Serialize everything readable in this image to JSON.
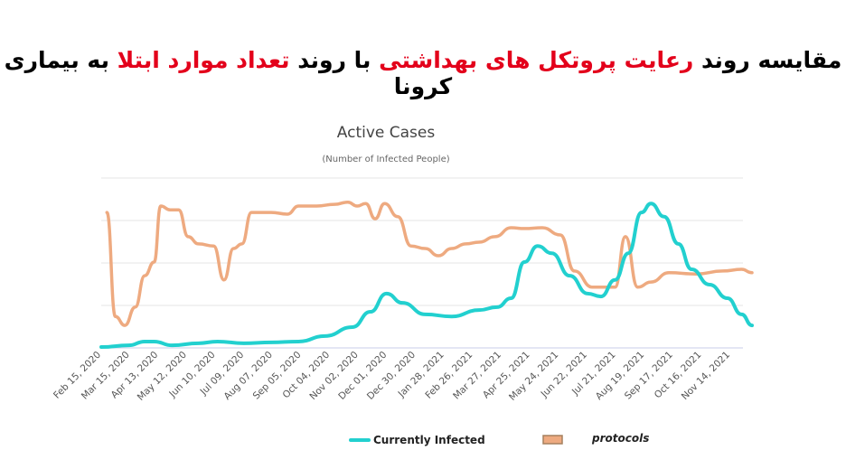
{
  "headline": [
    {
      "text": "مقایسه روند",
      "color": "#000000"
    },
    {
      "text": "رعایت پروتکل های بهداشتی",
      "color": "#e3001b"
    },
    {
      "text": "با روند",
      "color": "#000000"
    },
    {
      "text": "تعداد موارد ابتلا",
      "color": "#e3001b"
    },
    {
      "text": "به بیماری کرونا",
      "color": "#000000"
    }
  ],
  "chart_data": {
    "type": "line",
    "title": "Active Cases",
    "subtitle": "(Number of Infected People)",
    "xlabel": "",
    "ylabel": "",
    "x_tick_labels": [
      "Feb 15, 2020",
      "Mar 15, 2020",
      "Apr 13, 2020",
      "May 12, 2020",
      "Jun 10, 2020",
      "Jul 09, 2020",
      "Aug 07, 2020",
      "Sep 05, 2020",
      "Oct 04, 2020",
      "Nov 02, 2020",
      "Dec 01, 2020",
      "Dec 30, 2020",
      "Jan 28, 2021",
      "Feb 26, 2021",
      "Mar 27, 2021",
      "Apr 25, 2021",
      "May 24, 2021",
      "Jun 22, 2021",
      "Jul 21, 2021",
      "Aug 19, 2021",
      "Sep 17, 2021",
      "Oct 16, 2021",
      "Nov 14, 2021"
    ],
    "x_range": [
      "2020-02-15",
      "2022-01-04"
    ],
    "ylim": [
      0,
      4
    ],
    "y_scale_note": "relative (no y-axis labels shown)",
    "grid": true,
    "legend_position": "bottom",
    "series": [
      {
        "name": "Currently Infected",
        "color": "#22d0cf",
        "points": [
          [
            "2020-02-15",
            0.02
          ],
          [
            "2020-03-15",
            0.06
          ],
          [
            "2020-04-01",
            0.15
          ],
          [
            "2020-04-11",
            0.15
          ],
          [
            "2020-04-30",
            0.06
          ],
          [
            "2020-05-28",
            0.11
          ],
          [
            "2020-06-17",
            0.15
          ],
          [
            "2020-07-15",
            0.11
          ],
          [
            "2020-08-13",
            0.13
          ],
          [
            "2020-09-11",
            0.15
          ],
          [
            "2020-10-09",
            0.28
          ],
          [
            "2020-11-07",
            0.49
          ],
          [
            "2020-11-26",
            0.85
          ],
          [
            "2020-12-13",
            1.28
          ],
          [
            "2020-12-30",
            1.06
          ],
          [
            "2021-01-23",
            0.79
          ],
          [
            "2021-02-20",
            0.74
          ],
          [
            "2021-03-21",
            0.89
          ],
          [
            "2021-04-09",
            0.96
          ],
          [
            "2021-04-24",
            1.17
          ],
          [
            "2021-05-08",
            2.02
          ],
          [
            "2021-05-22",
            2.4
          ],
          [
            "2021-06-06",
            2.23
          ],
          [
            "2021-06-25",
            1.7
          ],
          [
            "2021-07-14",
            1.28
          ],
          [
            "2021-07-28",
            1.21
          ],
          [
            "2021-08-12",
            1.6
          ],
          [
            "2021-08-26",
            2.23
          ],
          [
            "2021-09-09",
            3.19
          ],
          [
            "2021-09-19",
            3.4
          ],
          [
            "2021-10-03",
            3.09
          ],
          [
            "2021-10-18",
            2.45
          ],
          [
            "2021-11-01",
            1.85
          ],
          [
            "2021-11-20",
            1.49
          ],
          [
            "2021-12-09",
            1.17
          ],
          [
            "2021-12-24",
            0.79
          ],
          [
            "2022-01-04",
            0.53
          ]
        ]
      },
      {
        "name": "protocols",
        "color": "#eeaa80",
        "points": [
          [
            "2020-02-21",
            3.19
          ],
          [
            "2020-03-01",
            0.74
          ],
          [
            "2020-03-11",
            0.53
          ],
          [
            "2020-03-22",
            0.96
          ],
          [
            "2020-04-01",
            1.7
          ],
          [
            "2020-04-11",
            2.02
          ],
          [
            "2020-04-18",
            3.34
          ],
          [
            "2020-04-28",
            3.25
          ],
          [
            "2020-05-07",
            3.25
          ],
          [
            "2020-05-17",
            2.62
          ],
          [
            "2020-05-28",
            2.45
          ],
          [
            "2020-06-13",
            2.4
          ],
          [
            "2020-06-24",
            1.6
          ],
          [
            "2020-07-04",
            2.34
          ],
          [
            "2020-07-13",
            2.45
          ],
          [
            "2020-07-23",
            3.19
          ],
          [
            "2020-08-13",
            3.19
          ],
          [
            "2020-08-30",
            3.15
          ],
          [
            "2020-09-11",
            3.34
          ],
          [
            "2020-09-30",
            3.34
          ],
          [
            "2020-10-19",
            3.38
          ],
          [
            "2020-11-02",
            3.43
          ],
          [
            "2020-11-12",
            3.34
          ],
          [
            "2020-11-21",
            3.4
          ],
          [
            "2020-12-01",
            3.04
          ],
          [
            "2020-12-11",
            3.4
          ],
          [
            "2020-12-25",
            3.09
          ],
          [
            "2021-01-08",
            2.4
          ],
          [
            "2021-01-23",
            2.34
          ],
          [
            "2021-02-06",
            2.17
          ],
          [
            "2021-02-20",
            2.34
          ],
          [
            "2021-03-07",
            2.45
          ],
          [
            "2021-03-21",
            2.49
          ],
          [
            "2021-04-07",
            2.62
          ],
          [
            "2021-04-24",
            2.83
          ],
          [
            "2021-05-08",
            2.81
          ],
          [
            "2021-05-27",
            2.83
          ],
          [
            "2021-06-15",
            2.66
          ],
          [
            "2021-06-30",
            1.81
          ],
          [
            "2021-07-19",
            1.43
          ],
          [
            "2021-08-12",
            1.43
          ],
          [
            "2021-08-23",
            2.62
          ],
          [
            "2021-09-05",
            1.43
          ],
          [
            "2021-09-19",
            1.55
          ],
          [
            "2021-10-08",
            1.77
          ],
          [
            "2021-11-06",
            1.74
          ],
          [
            "2021-12-04",
            1.81
          ],
          [
            "2021-12-24",
            1.85
          ],
          [
            "2022-01-04",
            1.77
          ]
        ]
      }
    ]
  }
}
